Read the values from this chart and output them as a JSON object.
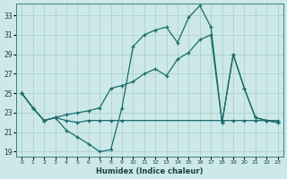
{
  "xlabel": "Humidex (Indice chaleur)",
  "bg_color": "#cce8e8",
  "line_color": "#1a6b6b",
  "grid_color": "#aacccc",
  "xlim": [
    -0.5,
    23.5
  ],
  "ylim": [
    18.5,
    34.2
  ],
  "xticks": [
    0,
    1,
    2,
    3,
    4,
    5,
    6,
    7,
    8,
    9,
    10,
    11,
    12,
    13,
    14,
    15,
    16,
    17,
    18,
    19,
    20,
    21,
    22,
    23
  ],
  "yticks": [
    19,
    21,
    23,
    25,
    27,
    29,
    31,
    33
  ],
  "line1_x": [
    0,
    1,
    2,
    3,
    4,
    5,
    6,
    7,
    8,
    9,
    10,
    11,
    12,
    13,
    14,
    15,
    16,
    17,
    18,
    19,
    20,
    21,
    22,
    23
  ],
  "line1_y": [
    25.0,
    23.5,
    22.2,
    22.5,
    21.2,
    20.5,
    19.8,
    19.0,
    19.2,
    23.5,
    29.8,
    31.0,
    31.5,
    31.8,
    30.2,
    32.8,
    34.0,
    31.8,
    22.0,
    29.0,
    25.5,
    22.5,
    22.2,
    22.0
  ],
  "line2_x": [
    0,
    1,
    2,
    3,
    4,
    5,
    6,
    7,
    8,
    9,
    10,
    11,
    12,
    13,
    14,
    15,
    16,
    17,
    18,
    19,
    20,
    21,
    22,
    23
  ],
  "line2_y": [
    25.0,
    23.5,
    22.2,
    22.5,
    22.8,
    23.0,
    23.2,
    23.5,
    25.5,
    25.8,
    26.2,
    27.0,
    27.5,
    26.8,
    28.5,
    29.2,
    30.5,
    31.0,
    22.0,
    29.0,
    25.5,
    22.5,
    22.2,
    22.0
  ],
  "line3_x": [
    0,
    1,
    2,
    3,
    4,
    5,
    6,
    7,
    8,
    9,
    18,
    19,
    20,
    21,
    22,
    23
  ],
  "line3_y": [
    25.0,
    23.5,
    22.2,
    22.5,
    22.2,
    22.0,
    22.2,
    22.2,
    22.2,
    22.2,
    22.2,
    22.2,
    22.2,
    22.2,
    22.2,
    22.2
  ]
}
